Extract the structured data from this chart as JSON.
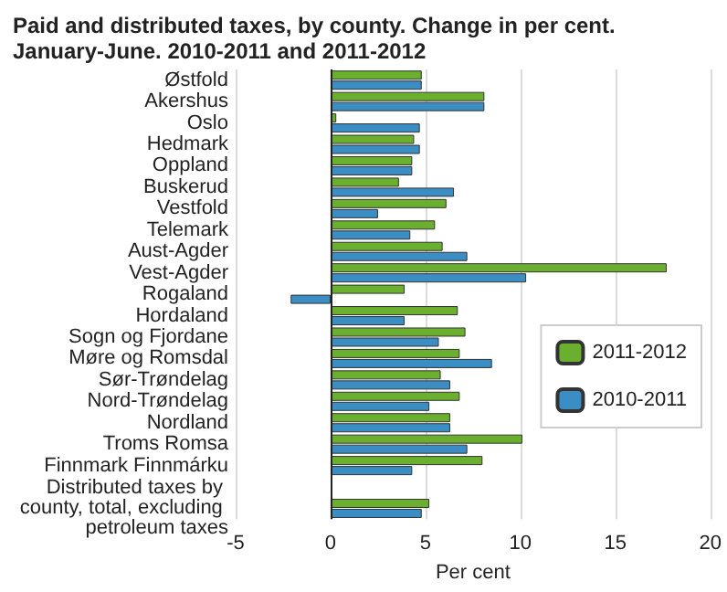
{
  "chart_data": {
    "type": "bar",
    "orientation": "horizontal",
    "title": "Paid and distributed taxes, by county. Change in per cent.\nJanuary-June. 2010-2011 and 2011-2012",
    "xlabel": "Per cent",
    "categories": [
      "Østfold",
      "Akershus",
      "Oslo",
      "Hedmark",
      "Oppland",
      "Buskerud",
      "Vestfold",
      "Telemark",
      "Aust-Agder",
      "Vest-Agder",
      "Rogaland",
      "Hordaland",
      "Sogn og Fjordane",
      "Møre og Romsdal",
      "Sør-Trøndelag",
      "Nord-Trøndelag",
      "Nordland",
      "Troms Romsa",
      "Finnmark Finnmárku",
      null,
      "Distributed taxes by county, total, excluding petroleum taxes"
    ],
    "series": [
      {
        "name": "2011-2012",
        "color": "#6ab02e",
        "values": [
          4.8,
          8.1,
          0.3,
          4.4,
          4.3,
          3.6,
          6.1,
          5.5,
          5.9,
          17.7,
          3.9,
          6.7,
          7.1,
          6.8,
          5.8,
          6.8,
          6.3,
          10.1,
          8.0,
          null,
          5.2
        ]
      },
      {
        "name": "2010-2011",
        "color": "#3a8ec4",
        "values": [
          4.8,
          8.1,
          4.7,
          4.7,
          4.3,
          6.5,
          2.5,
          4.2,
          7.2,
          10.3,
          -2.1,
          3.9,
          5.7,
          8.5,
          6.3,
          5.2,
          6.3,
          7.2,
          4.3,
          null,
          4.8
        ]
      }
    ],
    "xlim": [
      -5,
      20
    ],
    "xticks": [
      -5,
      0,
      5,
      10,
      15,
      20
    ],
    "grid": "x",
    "legend": "right"
  }
}
